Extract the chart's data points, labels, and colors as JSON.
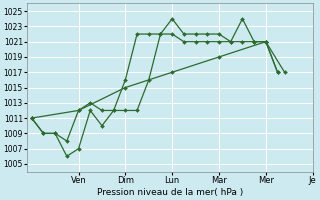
{
  "ylabel": "Pression niveau de la mer( hPa )",
  "bg_color": "#cdeaf0",
  "grid_color": "#ffffff",
  "line_color": "#2d6a2d",
  "ylim": [
    1004,
    1026
  ],
  "ytick_vals": [
    1005,
    1007,
    1009,
    1011,
    1013,
    1015,
    1017,
    1019,
    1021,
    1023,
    1025
  ],
  "day_labels": [
    "Ven",
    "Dim",
    "Lun",
    "Mar",
    "Mer",
    "Je"
  ],
  "day_x": [
    2,
    4,
    6,
    8,
    10,
    12
  ],
  "line_zigzag_x": [
    0.0,
    0.5,
    1.0,
    1.5,
    2.0,
    2.5,
    3.0,
    3.5,
    4.0,
    4.5,
    5.0,
    5.5,
    6.0,
    6.5,
    7.0,
    7.5,
    8.0,
    8.5,
    9.0,
    9.5,
    10.0,
    10.5
  ],
  "line_zigzag_y": [
    1011,
    1009,
    1009,
    1006,
    1007,
    1012,
    1010,
    1012,
    1012,
    1012,
    1016,
    1022,
    1024,
    1022,
    1022,
    1022,
    1022,
    1021,
    1024,
    1021,
    1021,
    1017
  ],
  "line_mid_x": [
    0.0,
    0.5,
    1.0,
    1.5,
    2.0,
    2.5,
    3.0,
    3.5,
    4.0,
    4.5,
    5.0,
    5.5,
    6.0,
    6.5,
    7.0,
    7.5,
    8.0,
    8.5,
    9.0,
    9.5,
    10.0,
    10.5
  ],
  "line_mid_y": [
    1011,
    1009,
    1009,
    1008,
    1012,
    1013,
    1012,
    1012,
    1016,
    1022,
    1022,
    1022,
    1022,
    1021,
    1021,
    1021,
    1021,
    1021,
    1021,
    1021,
    1021,
    1017
  ],
  "line_smooth_x": [
    0.0,
    2.0,
    4.0,
    6.0,
    8.0,
    10.0,
    10.8
  ],
  "line_smooth_y": [
    1011,
    1012,
    1015,
    1017,
    1019,
    1021,
    1017
  ]
}
